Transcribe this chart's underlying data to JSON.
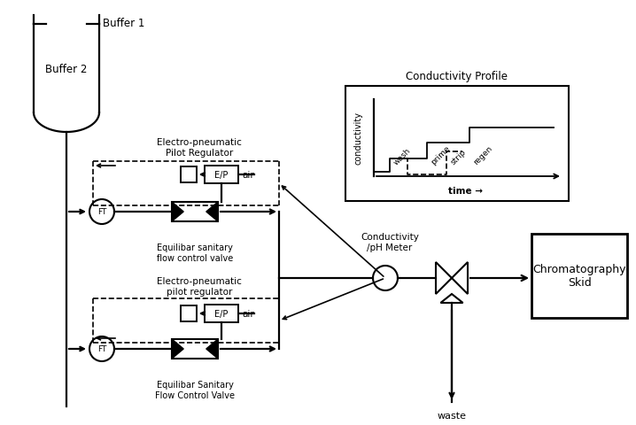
{
  "bg_color": "#ffffff",
  "line_color": "#000000",
  "dashed_color": "#000000",
  "labels": {
    "buffer1": "Buffer 1",
    "buffer2": "Buffer 2",
    "ep_regulator1": "Electro-pneumatic\nPilot Regulator",
    "ep_regulator2": "Electro-pneumatic\npilot regulator",
    "eq_valve1": "Equilibar sanitary\nflow control valve",
    "eq_valve2": "Equilibar Sanitary\nFlow Control Valve",
    "ft": "FT",
    "ep": "E/P",
    "air": "air",
    "conductivity_meter": "Conductivity\n/pH Meter",
    "waste": "waste",
    "chrom_skid": "Chromatography\nSkid",
    "cond_profile_title": "Conductivity Profile",
    "cond_ylabel": "conductivity",
    "cond_xlabel": "time",
    "wash": "wash",
    "prime": "prime",
    "strip": "strip",
    "regen": "regen"
  }
}
